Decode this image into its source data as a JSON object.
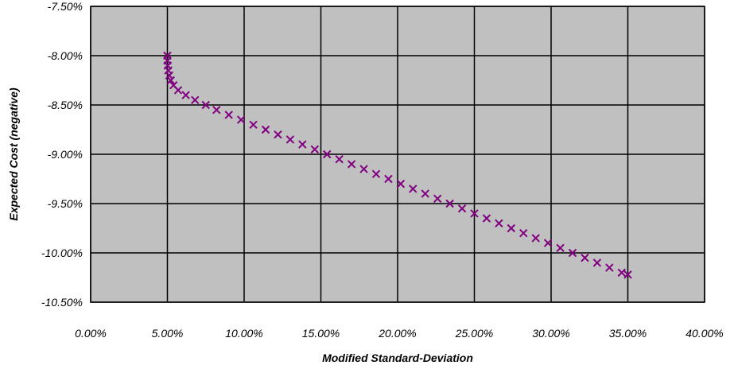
{
  "chart_data": {
    "type": "scatter",
    "xlabel": "Modified Standard-Deviation",
    "ylabel": "Expected Cost (negative)",
    "xlim": [
      0,
      0.4
    ],
    "ylim": [
      -0.105,
      -0.075
    ],
    "x_ticks": [
      "0.00%",
      "5.00%",
      "10.00%",
      "15.00%",
      "20.00%",
      "25.00%",
      "30.00%",
      "35.00%",
      "40.00%"
    ],
    "y_ticks": [
      "-7.50%",
      "-8.00%",
      "-8.50%",
      "-9.00%",
      "-9.50%",
      "-10.00%",
      "-10.50%"
    ],
    "grid": true,
    "marker": "x",
    "plot_background": "#c0c0c0",
    "series": [
      {
        "color": "#800080",
        "points": [
          [
            0.05,
            -0.08
          ],
          [
            0.05,
            -0.0805
          ],
          [
            0.0502,
            -0.081
          ],
          [
            0.0506,
            -0.0815
          ],
          [
            0.0512,
            -0.082
          ],
          [
            0.0522,
            -0.0825
          ],
          [
            0.054,
            -0.083
          ],
          [
            0.057,
            -0.0835
          ],
          [
            0.062,
            -0.084
          ],
          [
            0.068,
            -0.0845
          ],
          [
            0.075,
            -0.085
          ],
          [
            0.082,
            -0.0855
          ],
          [
            0.09,
            -0.086
          ],
          [
            0.098,
            -0.0865
          ],
          [
            0.106,
            -0.087
          ],
          [
            0.114,
            -0.0875
          ],
          [
            0.122,
            -0.088
          ],
          [
            0.13,
            -0.0885
          ],
          [
            0.138,
            -0.089
          ],
          [
            0.146,
            -0.0895
          ],
          [
            0.154,
            -0.09
          ],
          [
            0.162,
            -0.0905
          ],
          [
            0.17,
            -0.091
          ],
          [
            0.178,
            -0.0915
          ],
          [
            0.186,
            -0.092
          ],
          [
            0.194,
            -0.0925
          ],
          [
            0.202,
            -0.093
          ],
          [
            0.21,
            -0.0935
          ],
          [
            0.218,
            -0.094
          ],
          [
            0.226,
            -0.0945
          ],
          [
            0.234,
            -0.095
          ],
          [
            0.242,
            -0.0955
          ],
          [
            0.25,
            -0.096
          ],
          [
            0.258,
            -0.0965
          ],
          [
            0.266,
            -0.097
          ],
          [
            0.274,
            -0.0975
          ],
          [
            0.282,
            -0.098
          ],
          [
            0.29,
            -0.0985
          ],
          [
            0.298,
            -0.099
          ],
          [
            0.306,
            -0.0995
          ],
          [
            0.314,
            -0.1
          ],
          [
            0.322,
            -0.1005
          ],
          [
            0.33,
            -0.101
          ],
          [
            0.338,
            -0.1015
          ],
          [
            0.346,
            -0.102
          ],
          [
            0.35,
            -0.1022
          ]
        ]
      }
    ]
  }
}
